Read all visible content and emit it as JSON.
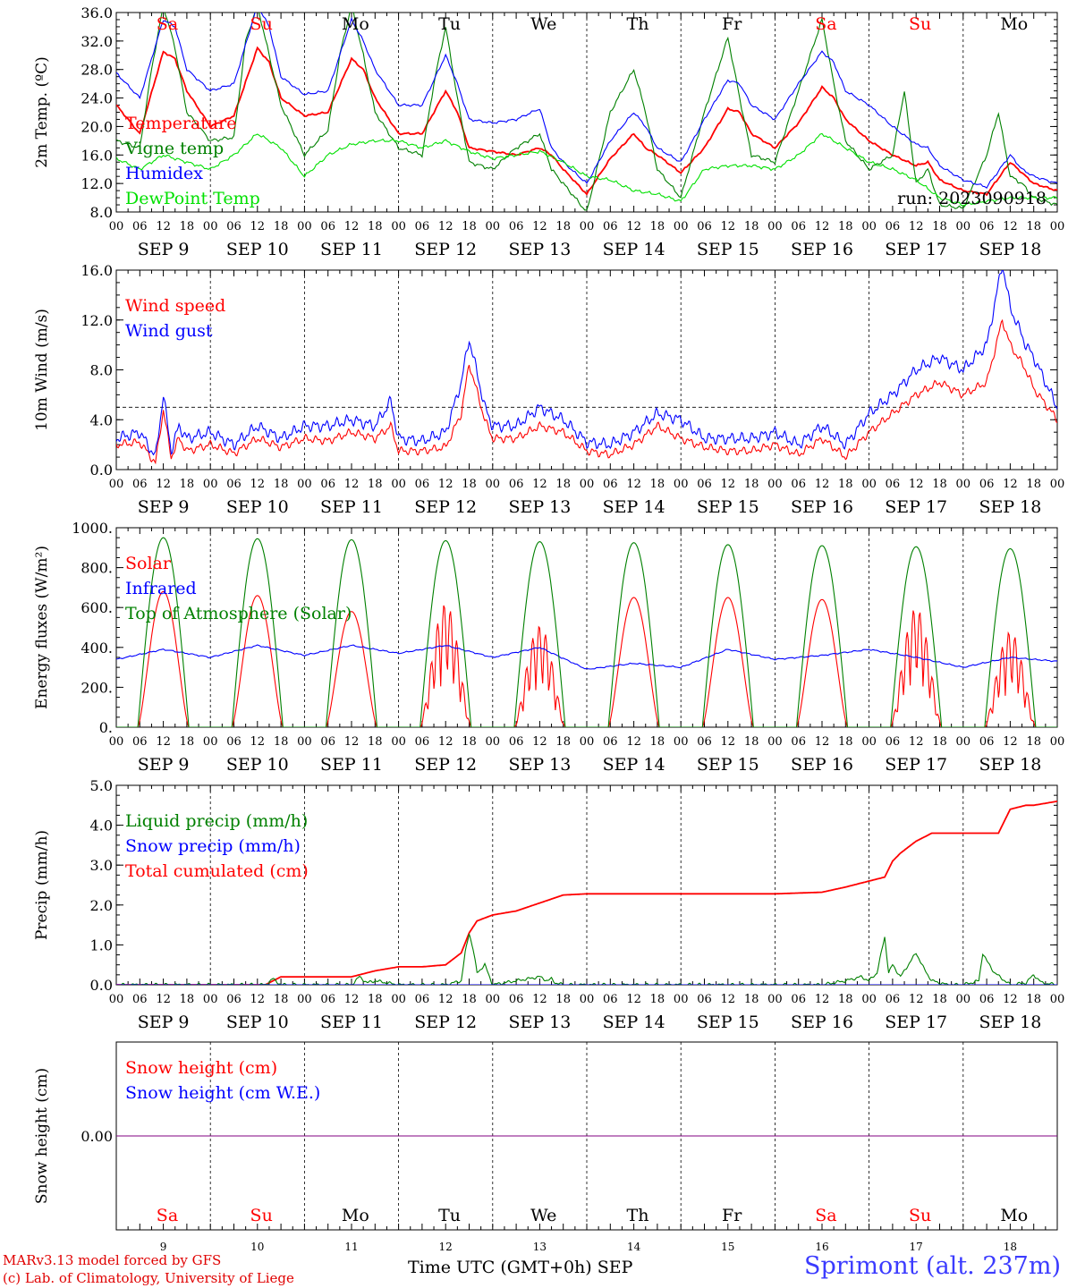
{
  "run_label": "run: 2023090918",
  "weekdays": [
    "Sa",
    "Su",
    "Mo",
    "Tu",
    "We",
    "Th",
    "Fr",
    "Sa",
    "Su",
    "Mo"
  ],
  "weekday_colors": [
    "#ff0000",
    "#ff0000",
    "#000000",
    "#000000",
    "#000000",
    "#000000",
    "#000000",
    "#ff0000",
    "#ff0000",
    "#000000"
  ],
  "date_labels": [
    "SEP  9",
    "SEP 10",
    "SEP 11",
    "SEP 12",
    "SEP 13",
    "SEP 14",
    "SEP 15",
    "SEP 16",
    "SEP 17",
    "SEP 18"
  ],
  "day_numbers": [
    "9",
    "10",
    "11",
    "12",
    "13",
    "14",
    "15",
    "16",
    "17",
    "18"
  ],
  "hour_labels": [
    "00",
    "06",
    "12",
    "18"
  ],
  "hour_label_end": "00",
  "footer": {
    "credit_line1": "MARv3.13 model forced by GFS",
    "credit_line2": "(c) Lab. of Climatology, University of Liege",
    "xaxis_title": "Time UTC (GMT+0h) SEP",
    "station": "Sprimont (alt. 237m)"
  },
  "colors": {
    "red": "#ff0000",
    "green": "#008000",
    "blue": "#0000ff",
    "light_green": "#00e000",
    "purple": "#800080"
  },
  "chart_data": [
    {
      "type": "line",
      "ylabel": "2m Temp. (ºC)",
      "ylim": [
        8,
        36
      ],
      "yticks": [
        "8.0",
        "12.0",
        "16.0",
        "20.0",
        "24.0",
        "28.0",
        "32.0",
        "36.0"
      ],
      "xlim_hours": [
        0,
        240
      ],
      "legend": [
        "Temperature",
        "Vigne temp",
        "Humidex",
        "DewPoint Temp"
      ],
      "series": [
        {
          "name": "Temperature",
          "color": "#ff0000",
          "x": [
            0,
            6,
            12,
            15,
            18,
            24,
            30,
            36,
            39,
            42,
            48,
            54,
            60,
            63,
            66,
            72,
            78,
            84,
            87,
            90,
            96,
            102,
            108,
            111,
            114,
            120,
            126,
            132,
            135,
            138,
            144,
            150,
            156,
            159,
            162,
            168,
            174,
            180,
            183,
            186,
            192,
            198,
            204,
            207,
            210,
            216,
            222,
            228,
            231,
            234,
            240
          ],
          "values": [
            23,
            19,
            30.5,
            29.5,
            25,
            20,
            21.5,
            31,
            29,
            24,
            21.5,
            22,
            29.5,
            28,
            24,
            19,
            19,
            25,
            22,
            17,
            16.5,
            16,
            17,
            16,
            14,
            10.5,
            15.5,
            19,
            17,
            16,
            13.5,
            17,
            22.5,
            22,
            19,
            17,
            20.5,
            25.5,
            24,
            21,
            18,
            16,
            14.5,
            15,
            12.5,
            11,
            10.5,
            15,
            13.5,
            12,
            11
          ]
        },
        {
          "name": "Vigne temp",
          "color": "#008000",
          "x": [
            0,
            6,
            9,
            12,
            15,
            18,
            24,
            30,
            33,
            36,
            39,
            42,
            48,
            54,
            57,
            60,
            63,
            66,
            72,
            78,
            81,
            84,
            87,
            90,
            96,
            102,
            108,
            111,
            114,
            120,
            126,
            132,
            135,
            138,
            144,
            150,
            156,
            159,
            162,
            168,
            174,
            180,
            183,
            186,
            192,
            198,
            201,
            204,
            207,
            210,
            216,
            222,
            225,
            228,
            231,
            234,
            240
          ],
          "values": [
            18,
            17,
            28,
            37,
            31,
            22,
            18,
            18.5,
            32,
            37,
            30,
            23,
            16,
            19.5,
            30,
            37,
            30,
            22,
            17,
            16,
            26,
            34,
            24,
            15,
            14,
            17,
            19,
            14,
            12,
            8,
            22,
            28,
            22,
            14,
            10,
            22,
            32.5,
            24,
            16,
            15,
            25,
            35,
            26,
            18,
            14,
            16,
            25,
            12,
            14,
            9,
            8.5,
            16,
            22,
            13,
            12,
            10,
            9
          ]
        },
        {
          "name": "Humidex",
          "color": "#0000ff",
          "x": [
            0,
            6,
            12,
            15,
            18,
            24,
            30,
            36,
            39,
            42,
            48,
            54,
            60,
            63,
            66,
            72,
            78,
            84,
            87,
            90,
            96,
            102,
            108,
            111,
            114,
            120,
            126,
            132,
            135,
            138,
            144,
            150,
            156,
            159,
            162,
            168,
            174,
            180,
            183,
            186,
            192,
            198,
            204,
            207,
            210,
            216,
            222,
            228,
            231,
            234,
            240
          ],
          "values": [
            27.5,
            24,
            35,
            34,
            28,
            25,
            26,
            37,
            34,
            27,
            24.5,
            25,
            35,
            32,
            28,
            23,
            23,
            30,
            26,
            21,
            20.5,
            21,
            22.5,
            17,
            15,
            12,
            18,
            22,
            20,
            17,
            15,
            21,
            26.5,
            26,
            23,
            21,
            26,
            30.5,
            29,
            25,
            23,
            20,
            17.5,
            17,
            14.5,
            12.5,
            11.5,
            16,
            14,
            13,
            12
          ]
        },
        {
          "name": "DewPoint Temp",
          "color": "#00e000",
          "x": [
            0,
            6,
            12,
            18,
            24,
            30,
            36,
            42,
            48,
            54,
            60,
            66,
            72,
            78,
            84,
            90,
            96,
            102,
            108,
            114,
            120,
            126,
            132,
            138,
            144,
            150,
            156,
            162,
            168,
            174,
            180,
            186,
            192,
            198,
            204,
            210,
            216,
            222,
            228,
            234,
            240
          ],
          "values": [
            15.5,
            14,
            16,
            15,
            14,
            16,
            19,
            17,
            13,
            16,
            17.5,
            18,
            18,
            17,
            18,
            16.5,
            15.5,
            16,
            16.5,
            15,
            13,
            12.5,
            11,
            10.5,
            9.5,
            14,
            14.5,
            14.5,
            14,
            16,
            19,
            17,
            15,
            14,
            12.5,
            10,
            9,
            9.5,
            10,
            10,
            10
          ]
        }
      ]
    },
    {
      "type": "line",
      "ylabel": "10m Wind (m/s)",
      "ylim": [
        0,
        16
      ],
      "yticks": [
        "0.0",
        "4.0",
        "8.0",
        "12.0",
        "16.0"
      ],
      "threshold": 5,
      "xlim_hours": [
        0,
        240
      ],
      "legend": [
        "Wind speed",
        "Wind gust"
      ],
      "series": [
        {
          "name": "Wind speed",
          "color": "#ff0000",
          "x": [
            0,
            6,
            10,
            12,
            14,
            16,
            18,
            24,
            30,
            36,
            42,
            48,
            54,
            60,
            66,
            70,
            72,
            78,
            84,
            88,
            90,
            94,
            96,
            102,
            108,
            114,
            120,
            126,
            132,
            138,
            144,
            150,
            156,
            162,
            168,
            174,
            180,
            186,
            192,
            198,
            204,
            210,
            216,
            222,
            226,
            228,
            232,
            234,
            240
          ],
          "values": [
            2,
            2.2,
            0.5,
            4.8,
            1,
            2.5,
            1.5,
            2,
            1.3,
            2.5,
            1.8,
            2.5,
            2.3,
            3,
            2.5,
            3.5,
            1.5,
            1.5,
            1.8,
            4.5,
            8.5,
            4,
            2.5,
            2.5,
            3.5,
            3,
            1.5,
            1.2,
            2,
            3.5,
            2.5,
            1.8,
            1.5,
            1.5,
            2,
            1.2,
            2.5,
            1,
            3,
            4.5,
            6,
            7,
            6,
            7,
            12,
            10,
            8,
            6.5,
            4
          ]
        },
        {
          "name": "Wind gust",
          "color": "#0000ff",
          "x": [
            0,
            6,
            10,
            12,
            14,
            16,
            18,
            24,
            30,
            36,
            42,
            48,
            54,
            60,
            66,
            70,
            72,
            78,
            84,
            88,
            90,
            94,
            96,
            102,
            108,
            114,
            120,
            126,
            132,
            138,
            144,
            150,
            156,
            162,
            168,
            174,
            180,
            186,
            192,
            198,
            204,
            210,
            216,
            222,
            226,
            228,
            232,
            234,
            240
          ],
          "values": [
            2.5,
            3,
            1,
            6,
            1.5,
            3.5,
            2.5,
            3,
            2,
            3.5,
            2.5,
            3.5,
            3.5,
            4,
            3.5,
            5.5,
            2.5,
            2.3,
            3,
            7,
            10.5,
            5,
            3.5,
            3.5,
            5,
            4,
            2.2,
            2,
            3,
            4.5,
            4,
            2.5,
            2.5,
            2.5,
            3,
            2,
            3.5,
            2,
            4.5,
            6,
            8,
            9,
            8,
            10,
            16.5,
            13,
            10,
            9,
            5
          ]
        }
      ]
    },
    {
      "type": "line",
      "ylabel": "Energy fluxes (W/m²)",
      "ylim": [
        0,
        1000
      ],
      "yticks": [
        "0.",
        "200.",
        "400.",
        "600.",
        "800.",
        "1000."
      ],
      "xlim_hours": [
        0,
        240
      ],
      "legend": [
        "Solar",
        "Infrared",
        "Top of Atmosphere (Solar)"
      ],
      "series": [
        {
          "name": "Solar",
          "color": "#ff0000",
          "daily_peak": [
            680,
            660,
            580,
            620,
            510,
            650,
            650,
            640,
            600,
            480
          ]
        },
        {
          "name": "Infrared",
          "color": "#0000ff",
          "x": [
            0,
            12,
            24,
            36,
            48,
            60,
            72,
            84,
            96,
            108,
            120,
            132,
            144,
            156,
            168,
            180,
            192,
            204,
            216,
            228,
            240
          ],
          "values": [
            340,
            390,
            350,
            410,
            360,
            410,
            370,
            410,
            350,
            400,
            290,
            320,
            300,
            390,
            340,
            360,
            390,
            350,
            300,
            350,
            330
          ]
        },
        {
          "name": "Top of Atmosphere (Solar)",
          "color": "#008000",
          "daily_peak": [
            950,
            945,
            940,
            935,
            930,
            925,
            915,
            910,
            905,
            895
          ]
        }
      ]
    },
    {
      "type": "line",
      "ylabel": "Precip (mm/h)",
      "ylim": [
        0,
        5
      ],
      "yticks": [
        "0.0",
        "1.0",
        "2.0",
        "3.0",
        "4.0",
        "5.0"
      ],
      "xlim_hours": [
        0,
        240
      ],
      "legend": [
        "Liquid precip (mm/h)",
        "Snow precip (mm/h)",
        "Total cumulated (cm)"
      ],
      "series": [
        {
          "name": "Total cumulated (cm)",
          "color": "#ff0000",
          "x": [
            0,
            38,
            42,
            48,
            54,
            60,
            66,
            72,
            78,
            84,
            88,
            90,
            92,
            96,
            102,
            108,
            114,
            120,
            132,
            144,
            156,
            168,
            180,
            186,
            192,
            196,
            198,
            200,
            204,
            208,
            216,
            225,
            228,
            232,
            234,
            240
          ],
          "values": [
            0,
            0,
            0.2,
            0.2,
            0.2,
            0.2,
            0.35,
            0.45,
            0.45,
            0.5,
            0.8,
            1.3,
            1.6,
            1.75,
            1.85,
            2.05,
            2.25,
            2.28,
            2.28,
            2.28,
            2.28,
            2.28,
            2.32,
            2.45,
            2.6,
            2.7,
            3.1,
            3.3,
            3.6,
            3.8,
            3.8,
            3.8,
            4.4,
            4.5,
            4.5,
            4.6
          ]
        },
        {
          "name": "Liquid precip (mm/h)",
          "color": "#008000",
          "x": [
            0,
            38,
            40,
            42,
            48,
            60,
            62,
            64,
            66,
            72,
            84,
            88,
            89,
            90,
            91,
            92,
            94,
            96,
            102,
            108,
            110,
            111,
            112,
            114,
            120,
            180,
            186,
            190,
            192,
            194,
            196,
            197,
            198,
            200,
            204,
            206,
            208,
            212,
            216,
            220,
            221,
            222,
            224,
            228,
            232,
            234,
            236,
            240
          ],
          "values": [
            0,
            0,
            0.15,
            0,
            0,
            0,
            0.2,
            0.05,
            0.1,
            0,
            0,
            0.1,
            0.8,
            1.3,
            0.9,
            0.3,
            0.5,
            0,
            0.1,
            0.2,
            0.1,
            0.15,
            0.05,
            0,
            0,
            0,
            0.1,
            0.2,
            0.1,
            0.3,
            1.2,
            0.3,
            0.5,
            0.2,
            0.8,
            0.4,
            0.1,
            0,
            0,
            0.1,
            0.8,
            0.6,
            0.3,
            0,
            0.05,
            0.25,
            0.05,
            0
          ]
        },
        {
          "name": "Snow precip (mm/h)",
          "color": "#0000ff",
          "x": [
            0,
            240
          ],
          "values": [
            0,
            0
          ]
        }
      ]
    },
    {
      "type": "line",
      "ylabel": "Snow height (cm)",
      "ylim": [
        -1,
        1
      ],
      "yticks": [
        "0.00"
      ],
      "xlim_hours": [
        0,
        240
      ],
      "legend": [
        "Snow height (cm)",
        "Snow height (cm W.E.)"
      ],
      "series": [
        {
          "name": "Snow height (cm)",
          "color": "#ff0000",
          "x": [
            0,
            240
          ],
          "values": [
            0,
            0
          ]
        },
        {
          "name": "Snow height (cm W.E.)",
          "color": "#800080",
          "x": [
            0,
            240
          ],
          "values": [
            0,
            0
          ]
        }
      ]
    }
  ]
}
